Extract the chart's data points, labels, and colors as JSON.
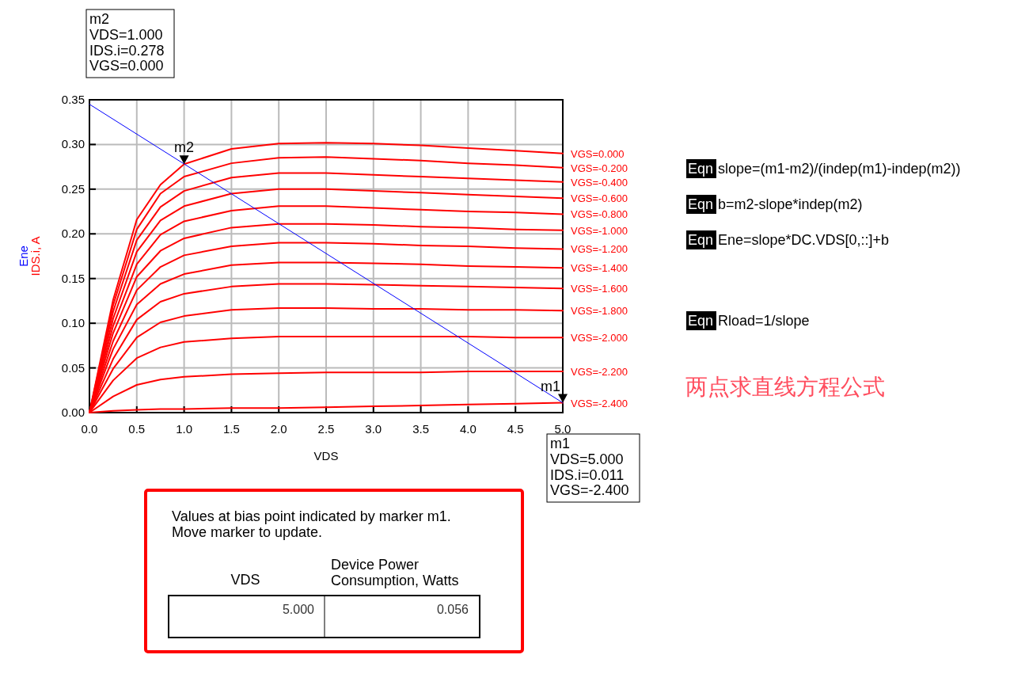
{
  "chart_data": {
    "type": "line",
    "xlabel": "VDS",
    "ylabel": "IDS.i, A",
    "x": [
      0,
      0.25,
      0.5,
      0.75,
      1,
      1.5,
      2,
      2.5,
      3,
      3.5,
      4,
      4.5,
      5
    ],
    "xlim": [
      0,
      5
    ],
    "ylim": [
      0,
      0.35
    ],
    "xticks": [
      {
        "value": 0,
        "label": "0.0"
      },
      {
        "value": 0.5,
        "label": "0.5"
      },
      {
        "value": 1,
        "label": "1.0"
      },
      {
        "value": 1.5,
        "label": "1.5"
      },
      {
        "value": 2,
        "label": "2.0"
      },
      {
        "value": 2.5,
        "label": "2.5"
      },
      {
        "value": 3,
        "label": "3.0"
      },
      {
        "value": 3.5,
        "label": "3.5"
      },
      {
        "value": 4,
        "label": "4.0"
      },
      {
        "value": 4.5,
        "label": "4.5"
      },
      {
        "value": 5,
        "label": "5.0"
      }
    ],
    "yticks": [
      {
        "value": 0,
        "label": "0.00"
      },
      {
        "value": 0.05,
        "label": "0.05"
      },
      {
        "value": 0.1,
        "label": "0.10"
      },
      {
        "value": 0.15,
        "label": "0.15"
      },
      {
        "value": 0.2,
        "label": "0.20"
      },
      {
        "value": 0.25,
        "label": "0.25"
      },
      {
        "value": 0.3,
        "label": "0.30"
      },
      {
        "value": 0.35,
        "label": "0.35"
      }
    ],
    "grid": true,
    "marker": "none",
    "line_style": "solid",
    "series": [
      {
        "name": "VGS=0.000",
        "color": "#ff0000",
        "values": [
          0,
          0.126,
          0.216,
          0.255,
          0.278,
          0.295,
          0.301,
          0.302,
          0.301,
          0.299,
          0.296,
          0.293,
          0.29
        ]
      },
      {
        "name": "VGS=-0.200",
        "color": "#ff0000",
        "values": [
          0,
          0.12,
          0.205,
          0.245,
          0.264,
          0.279,
          0.285,
          0.286,
          0.284,
          0.282,
          0.279,
          0.277,
          0.274
        ]
      },
      {
        "name": "VGS=-0.400",
        "color": "#ff0000",
        "values": [
          0,
          0.113,
          0.193,
          0.23,
          0.248,
          0.263,
          0.268,
          0.268,
          0.266,
          0.264,
          0.262,
          0.26,
          0.258
        ]
      },
      {
        "name": "VGS=-0.600",
        "color": "#ff0000",
        "values": [
          0,
          0.105,
          0.18,
          0.215,
          0.231,
          0.245,
          0.25,
          0.25,
          0.248,
          0.246,
          0.244,
          0.242,
          0.24
        ]
      },
      {
        "name": "VGS=-0.800",
        "color": "#ff0000",
        "values": [
          0,
          0.097,
          0.166,
          0.199,
          0.214,
          0.226,
          0.231,
          0.231,
          0.229,
          0.227,
          0.225,
          0.224,
          0.222
        ]
      },
      {
        "name": "VGS=-1.000",
        "color": "#ff0000",
        "values": [
          0,
          0.089,
          0.152,
          0.181,
          0.195,
          0.207,
          0.211,
          0.211,
          0.21,
          0.208,
          0.207,
          0.205,
          0.204
        ]
      },
      {
        "name": "VGS=-1.200",
        "color": "#ff0000",
        "values": [
          0,
          0.08,
          0.137,
          0.163,
          0.176,
          0.186,
          0.19,
          0.19,
          0.189,
          0.187,
          0.186,
          0.184,
          0.183
        ]
      },
      {
        "name": "VGS=-1.400",
        "color": "#ff0000",
        "values": [
          0,
          0.071,
          0.121,
          0.144,
          0.155,
          0.165,
          0.168,
          0.168,
          0.167,
          0.166,
          0.164,
          0.163,
          0.162
        ]
      },
      {
        "name": "VGS=-1.600",
        "color": "#ff0000",
        "values": [
          0,
          0.06,
          0.104,
          0.124,
          0.133,
          0.141,
          0.144,
          0.144,
          0.143,
          0.142,
          0.141,
          0.14,
          0.139
        ]
      },
      {
        "name": "VGS=-1.800",
        "color": "#ff0000",
        "values": [
          0,
          0.049,
          0.084,
          0.101,
          0.108,
          0.115,
          0.117,
          0.117,
          0.116,
          0.116,
          0.115,
          0.115,
          0.114
        ]
      },
      {
        "name": "VGS=-2.000",
        "color": "#ff0000",
        "values": [
          0,
          0.036,
          0.061,
          0.073,
          0.079,
          0.083,
          0.085,
          0.085,
          0.085,
          0.085,
          0.085,
          0.084,
          0.084
        ]
      },
      {
        "name": "VGS=-2.200",
        "color": "#ff0000",
        "values": [
          0,
          0.018,
          0.031,
          0.037,
          0.04,
          0.043,
          0.044,
          0.045,
          0.045,
          0.045,
          0.046,
          0.046,
          0.046
        ]
      },
      {
        "name": "VGS=-2.400",
        "color": "#ff0000",
        "values": [
          0,
          0.002,
          0.003,
          0.004,
          0.004,
          0.005,
          0.005,
          0.006,
          0.007,
          0.008,
          0.009,
          0.01,
          0.011
        ]
      },
      {
        "name": "Ene",
        "color": "#0000ff",
        "x": [
          0,
          5
        ],
        "values": [
          0.345,
          0.011
        ]
      }
    ],
    "annotations": [
      {
        "text": "m2",
        "x": 1,
        "y": 0.278
      },
      {
        "text": "m1",
        "x": 5,
        "y": 0.011
      },
      "m2\nVDS=1.000\nIDS.i=0.278\nVGS=0.000",
      "m1\nVDS=5.000\nIDS.i=0.011\nVGS=-2.400",
      "Eqn slope=(m1-m2)/(indep(m1)-indep(m2))",
      "Eqn b=m2-slope*indep(m2)",
      "Eqn Ene=slope*DC.VDS[0,::]+b",
      "Eqn Rload=1/slope",
      "两点求直线方程公式",
      "Values at bias point indicated by marker m1.\nMove marker to update.",
      "VDS",
      "Device Power\nConsumption, Watts",
      "5.000",
      "0.056"
    ]
  }
}
